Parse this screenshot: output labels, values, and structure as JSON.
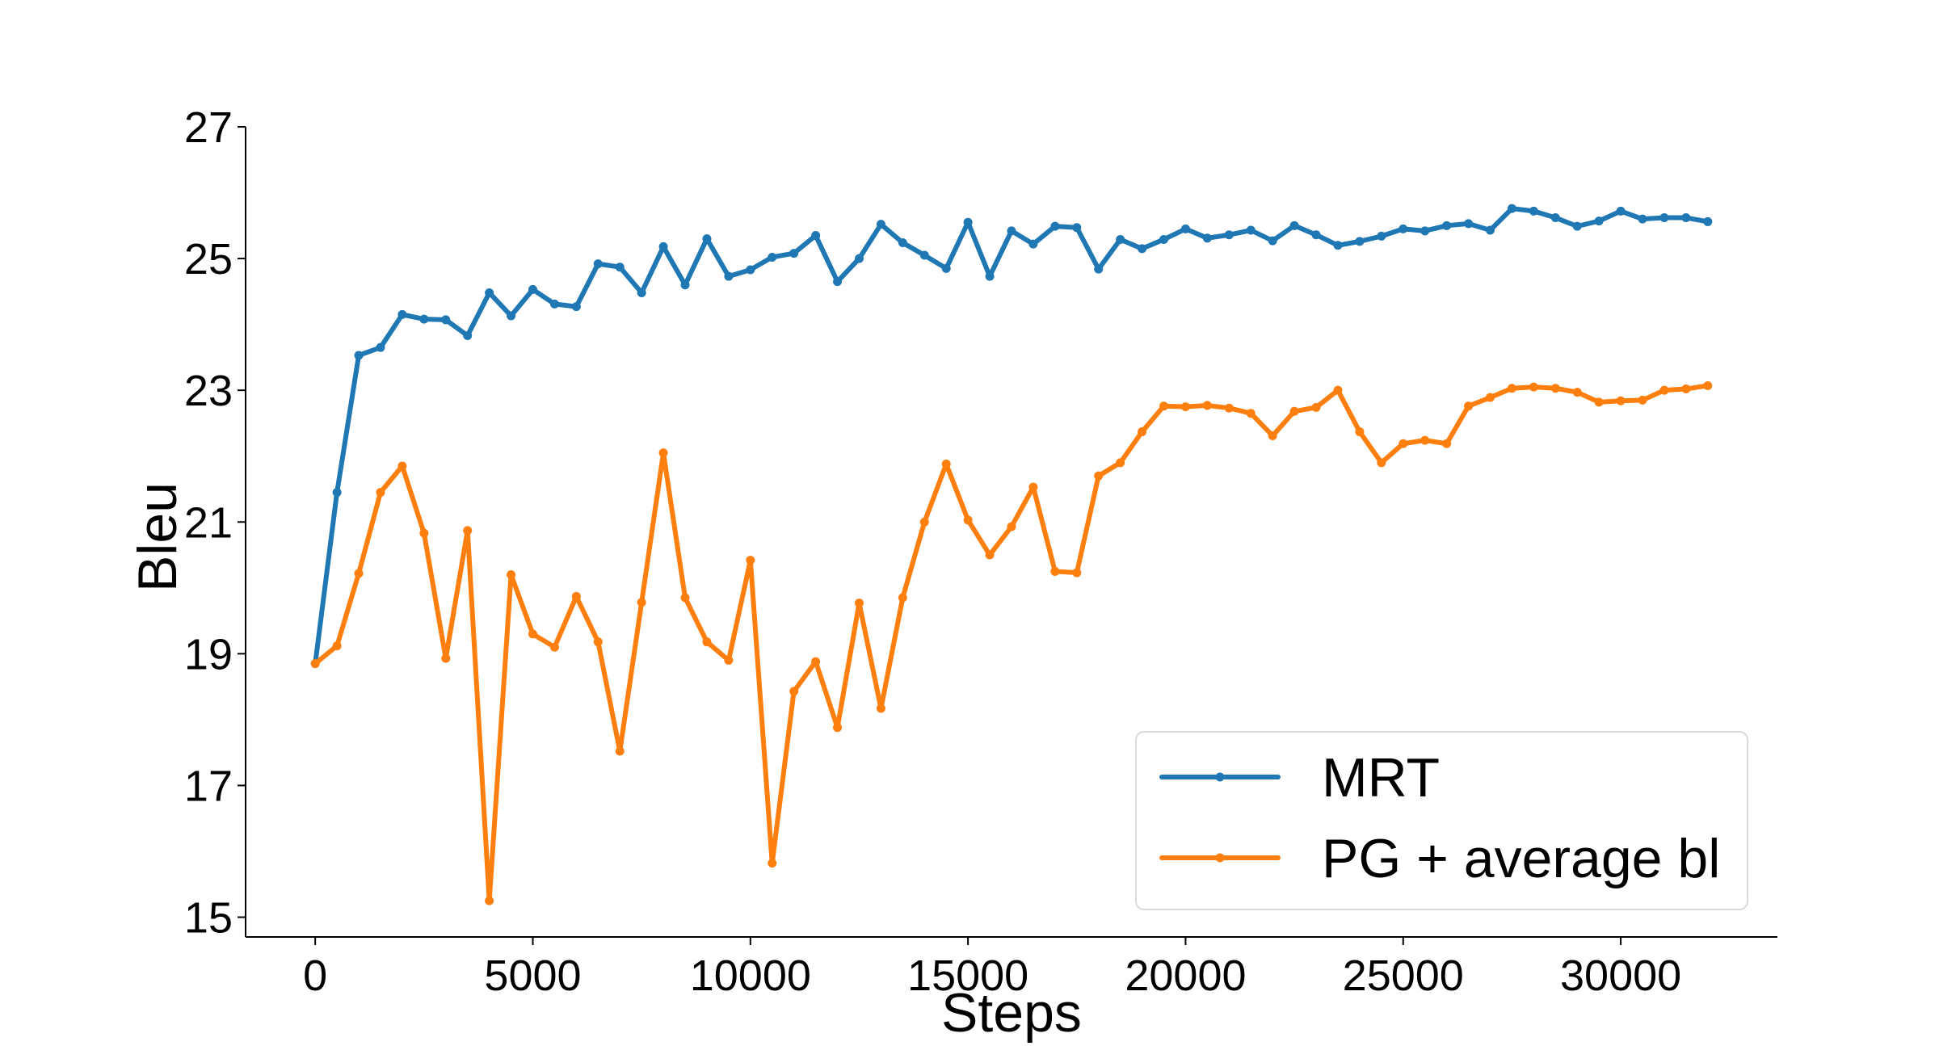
{
  "chart_data": {
    "type": "line",
    "title": "",
    "xlabel": "Steps",
    "ylabel": "Bleu",
    "xlim": [
      -1600,
      33600
    ],
    "ylim": [
      14.7,
      27.0
    ],
    "xticks": [
      0,
      5000,
      10000,
      15000,
      20000,
      25000,
      30000
    ],
    "yticks": [
      15,
      17,
      19,
      21,
      23,
      25,
      27
    ],
    "xtick_labels": [
      "0",
      "5000",
      "10000",
      "15000",
      "20000",
      "25000",
      "30000"
    ],
    "ytick_labels": [
      "15",
      "17",
      "19",
      "21",
      "23",
      "25",
      "27"
    ],
    "grid": false,
    "legend_position": "lower-right",
    "x": [
      0,
      500,
      1000,
      1500,
      2000,
      2500,
      3000,
      3500,
      4000,
      4500,
      5000,
      5500,
      6000,
      6500,
      7000,
      7500,
      8000,
      8500,
      9000,
      9500,
      10000,
      10500,
      11000,
      11500,
      12000,
      12500,
      13000,
      13500,
      14000,
      14500,
      15000,
      15500,
      16000,
      16500,
      17000,
      17500,
      18000,
      18500,
      19000,
      19500,
      20000,
      20500,
      21000,
      21500,
      22000,
      22500,
      23000,
      23500,
      24000,
      24500,
      25000,
      25500,
      26000,
      26500,
      27000,
      27500,
      28000,
      28500,
      29000,
      29500,
      30000,
      30500,
      31000,
      31500,
      32000
    ],
    "series": [
      {
        "name": "MRT",
        "color": "#1f77b4",
        "values": [
          18.85,
          21.45,
          23.53,
          23.65,
          24.15,
          24.08,
          24.07,
          23.83,
          24.48,
          24.13,
          24.53,
          24.31,
          24.27,
          24.92,
          24.87,
          24.48,
          25.18,
          24.6,
          25.3,
          24.73,
          24.83,
          25.02,
          25.08,
          25.35,
          24.65,
          25.0,
          25.52,
          25.24,
          25.05,
          24.85,
          25.55,
          24.73,
          25.42,
          25.22,
          25.49,
          25.47,
          24.84,
          25.29,
          25.15,
          25.29,
          25.45,
          25.31,
          25.36,
          25.43,
          25.27,
          25.5,
          25.36,
          25.2,
          25.26,
          25.34,
          25.45,
          25.42,
          25.5,
          25.53,
          25.43,
          25.76,
          25.72,
          25.62,
          25.49,
          25.57,
          25.72,
          25.6,
          25.62,
          25.62,
          25.56
        ]
      },
      {
        "name": "PG + average bl",
        "color": "#ff7f0e",
        "values": [
          18.85,
          19.12,
          20.22,
          21.45,
          21.85,
          20.83,
          18.93,
          20.87,
          15.25,
          20.2,
          19.3,
          19.1,
          19.87,
          19.18,
          17.52,
          19.78,
          22.05,
          19.85,
          19.18,
          18.9,
          20.42,
          15.82,
          18.43,
          18.88,
          17.88,
          19.77,
          18.17,
          19.85,
          21.0,
          21.88,
          21.03,
          20.5,
          20.93,
          21.53,
          20.25,
          20.23,
          21.7,
          21.9,
          22.37,
          22.76,
          22.75,
          22.77,
          22.73,
          22.65,
          22.31,
          22.68,
          22.74,
          23.0,
          22.37,
          21.9,
          22.19,
          22.24,
          22.19,
          22.76,
          22.89,
          23.03,
          23.05,
          23.03,
          22.97,
          22.82,
          22.84,
          22.85,
          23.0,
          23.02,
          23.07
        ]
      }
    ]
  }
}
